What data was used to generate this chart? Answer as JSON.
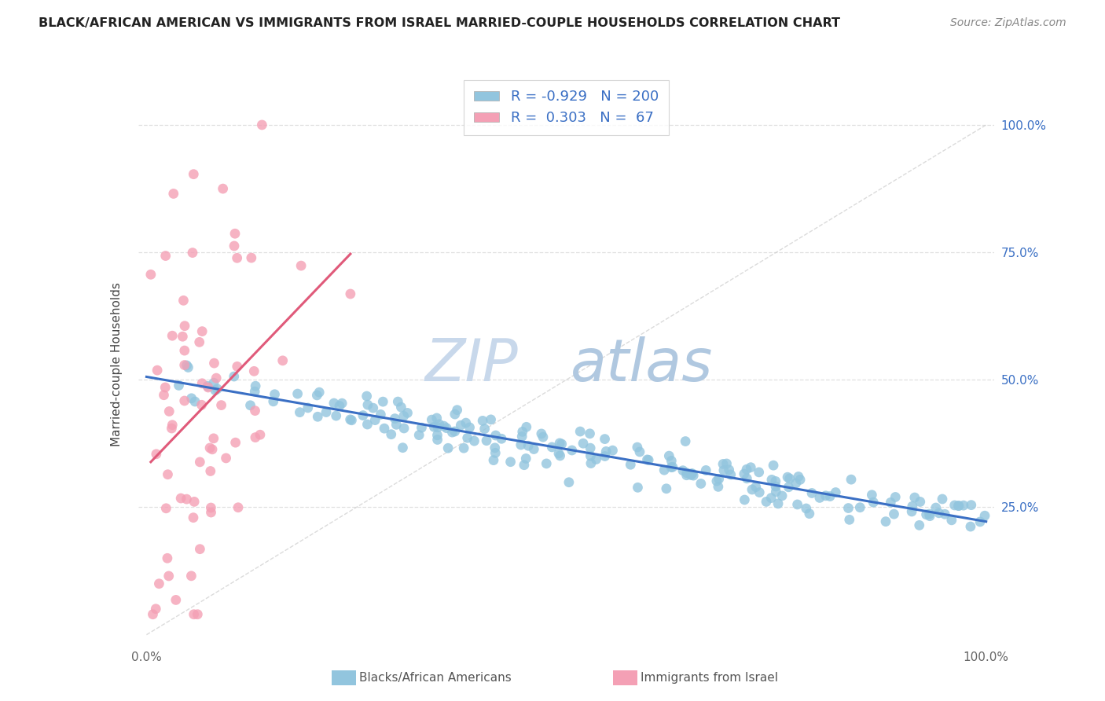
{
  "title": "BLACK/AFRICAN AMERICAN VS IMMIGRANTS FROM ISRAEL MARRIED-COUPLE HOUSEHOLDS CORRELATION CHART",
  "source": "Source: ZipAtlas.com",
  "ylabel": "Married-couple Households",
  "blue_R": -0.929,
  "blue_N": 200,
  "pink_R": 0.303,
  "pink_N": 67,
  "blue_color": "#92C5DE",
  "pink_color": "#F4A0B5",
  "blue_line_color": "#3A6FC4",
  "pink_line_color": "#E05A7A",
  "diagonal_color": "#CCCCCC",
  "legend_text_color": "#3A6FC4",
  "watermark_zip_color": "#C5D5E5",
  "watermark_atlas_color": "#B8CCE0",
  "background_color": "#FFFFFF",
  "grid_color": "#E0E0E0",
  "title_color": "#222222",
  "right_axis_label_color": "#3A6FC4",
  "tick_label_color": "#666666",
  "source_color": "#888888"
}
